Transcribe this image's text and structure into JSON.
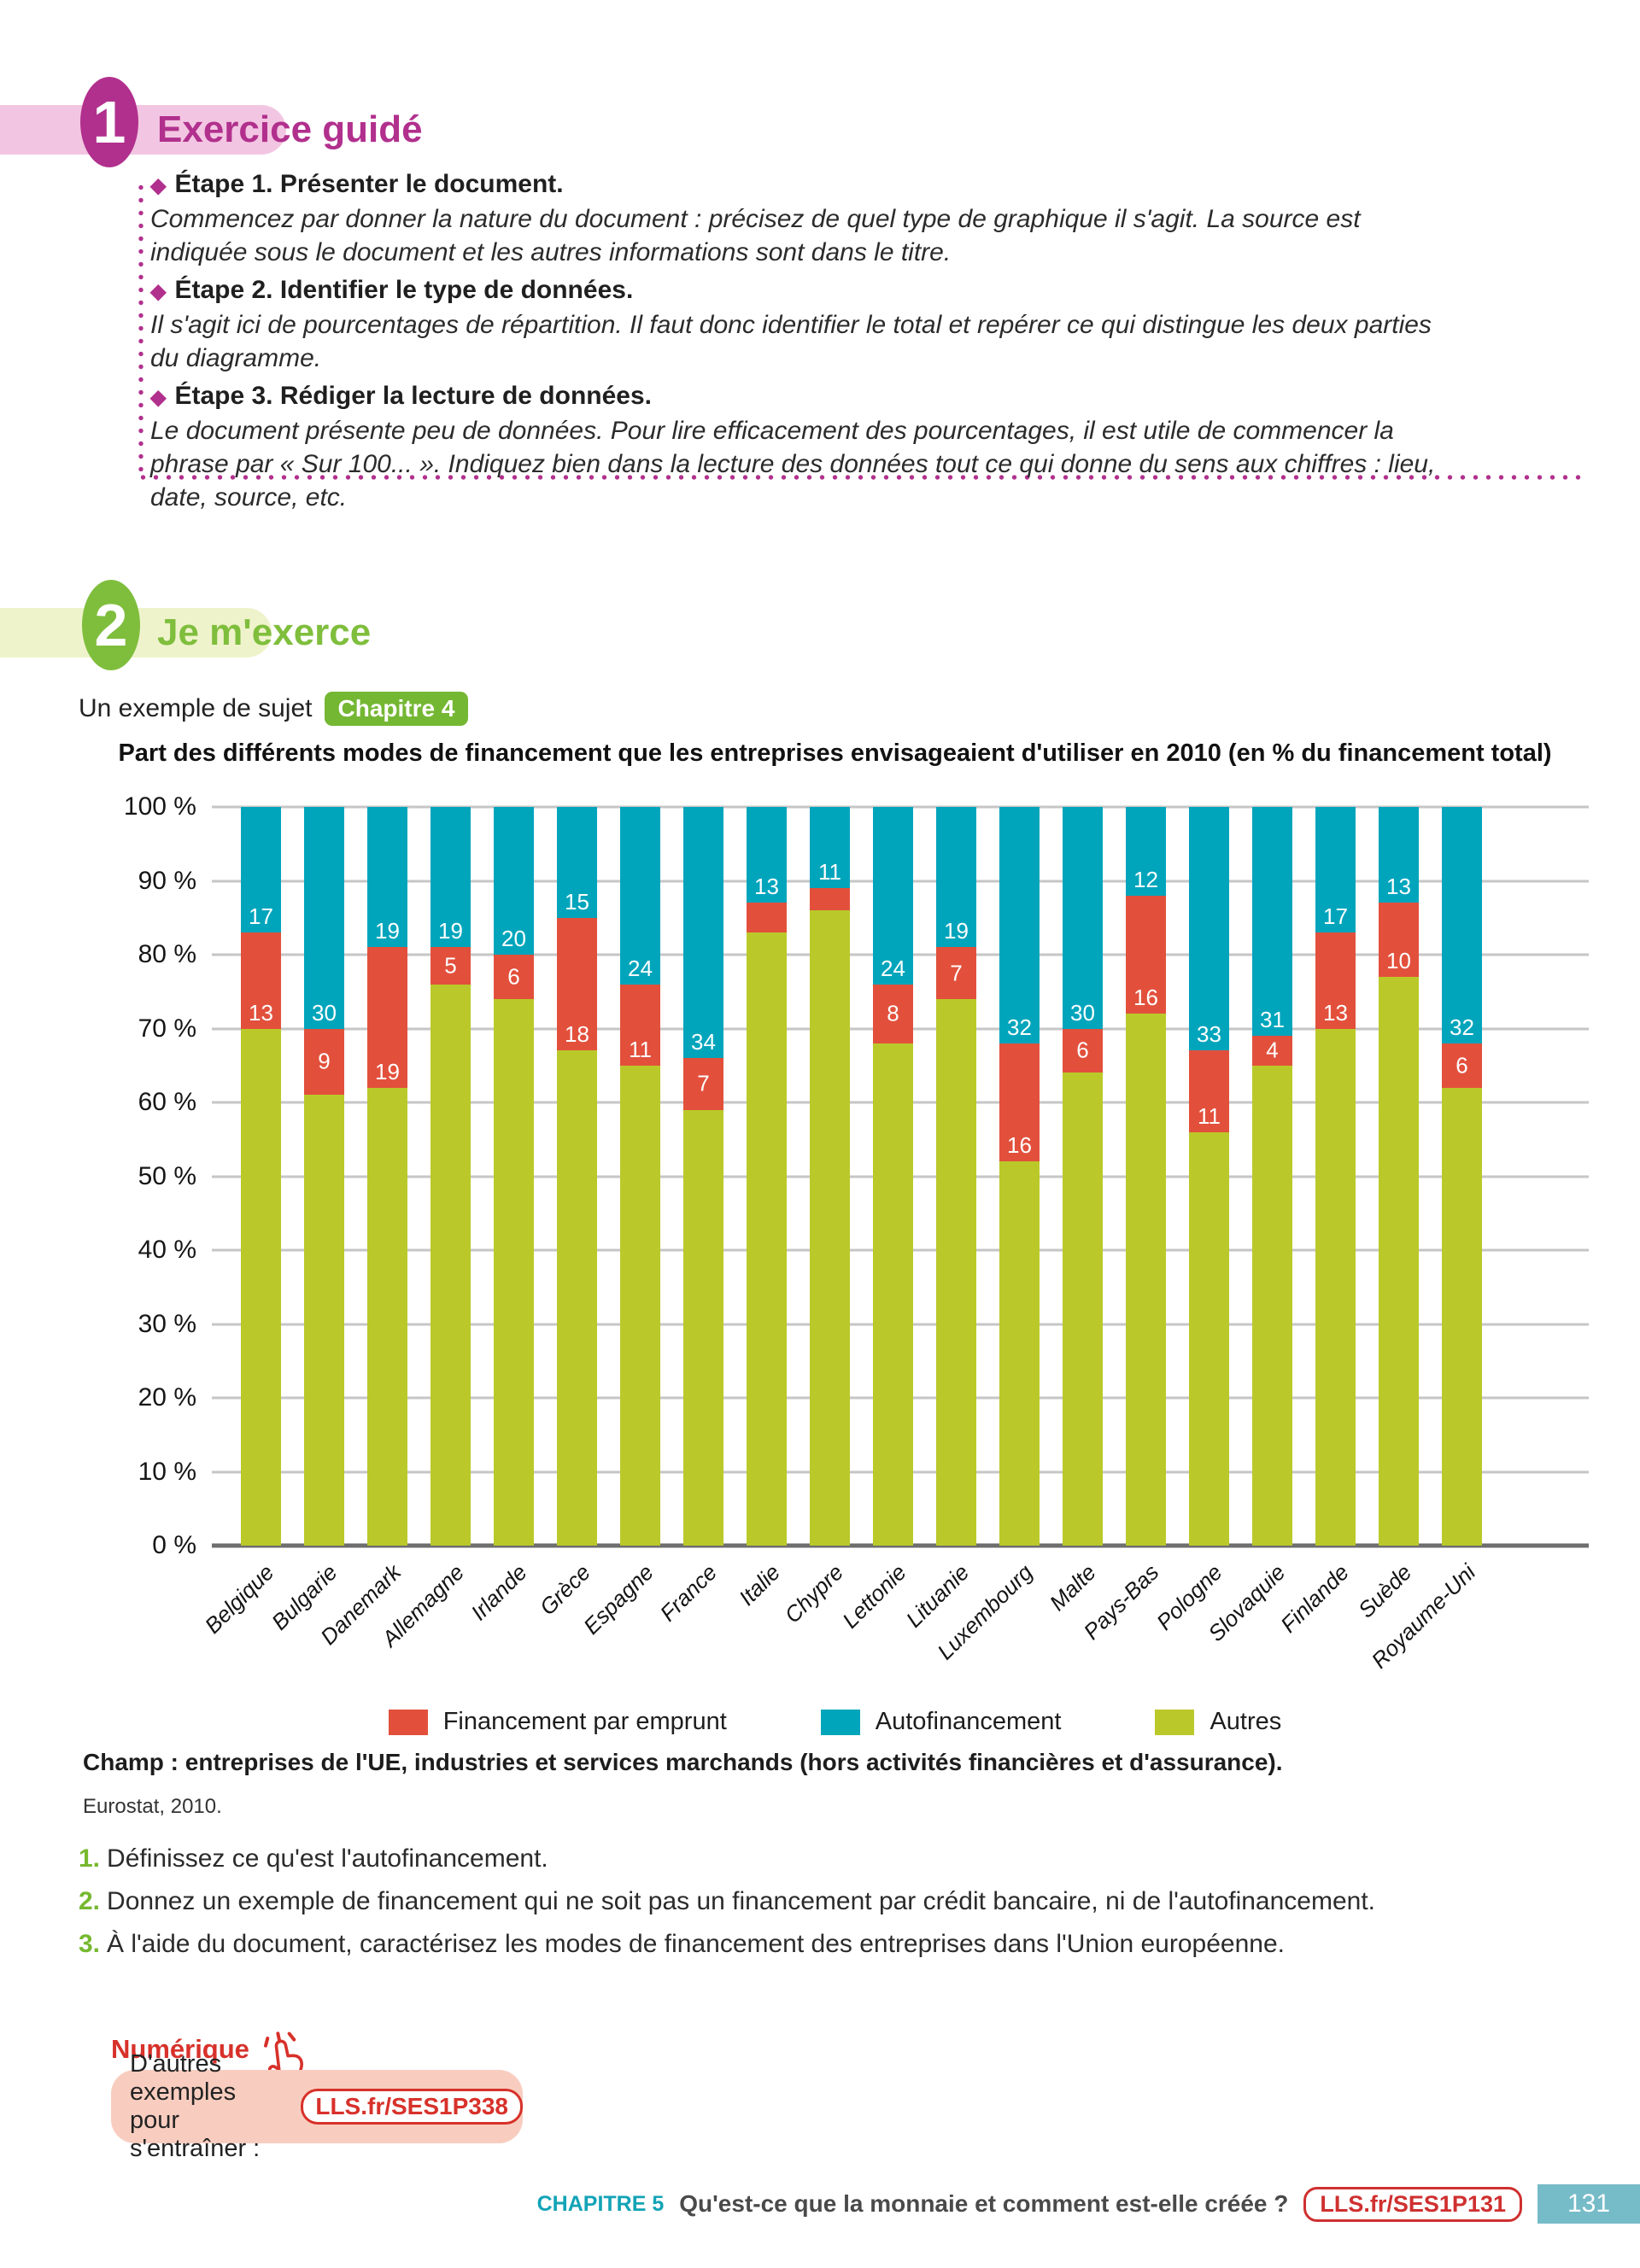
{
  "section1": {
    "number": "1",
    "title": "Exercice guidé",
    "steps": [
      {
        "heading": "Étape 1. Présenter le document.",
        "body": "Commencez par donner la nature du document : précisez de quel type de graphique il s'agit. La source est indiquée sous le document et les autres informations sont dans le titre."
      },
      {
        "heading": "Étape 2. Identifier le type de données.",
        "body": "Il s'agit ici de pourcentages de répartition. Il faut donc identifier le total et repérer ce qui distingue les deux parties du diagramme."
      },
      {
        "heading": "Étape 3. Rédiger la lecture de données.",
        "body": "Le document présente peu de données. Pour lire efficacement des pourcentages, il est utile de commencer la phrase par « Sur 100... ». Indiquez bien dans la lecture des données tout ce qui donne du sens aux chiffres : lieu, date, source, etc."
      }
    ]
  },
  "section2": {
    "number": "2",
    "title": "Je m'exerce",
    "subject_label": "Un exemple de sujet",
    "chapter_badge": "Chapitre 4"
  },
  "chart_data": {
    "type": "bar",
    "stacked": true,
    "title": "Part des différents modes de financement que les entreprises envisageaient d'utiliser en 2010 (en % du financement total)",
    "categories": [
      "Belgique",
      "Bulgarie",
      "Danemark",
      "Allemagne",
      "Irlande",
      "Grèce",
      "Espagne",
      "France",
      "Italie",
      "Chypre",
      "Lettonie",
      "Lituanie",
      "Luxembourg",
      "Malte",
      "Pays-Bas",
      "Pologne",
      "Slovaquie",
      "Finlande",
      "Suède",
      "Royaume-Uni"
    ],
    "series": [
      {
        "name": "Financement par emprunt",
        "color": "#e2503c",
        "values": [
          13,
          9,
          19,
          5,
          6,
          18,
          11,
          7,
          4,
          3,
          8,
          7,
          16,
          6,
          16,
          11,
          4,
          13,
          10,
          6
        ],
        "show_label": [
          true,
          true,
          true,
          true,
          true,
          true,
          true,
          true,
          false,
          false,
          true,
          true,
          true,
          true,
          true,
          true,
          true,
          true,
          true,
          true
        ]
      },
      {
        "name": "Autofinancement",
        "color": "#00a5bc",
        "values": [
          17,
          30,
          19,
          19,
          20,
          15,
          24,
          34,
          13,
          11,
          24,
          19,
          32,
          30,
          12,
          33,
          31,
          17,
          13,
          32
        ],
        "show_label": [
          true,
          true,
          true,
          true,
          true,
          true,
          true,
          true,
          true,
          true,
          true,
          true,
          true,
          true,
          true,
          true,
          true,
          true,
          true,
          true
        ]
      },
      {
        "name": "Autres",
        "color": "#bac929",
        "values": [
          70,
          61,
          62,
          76,
          74,
          67,
          65,
          59,
          83,
          86,
          68,
          74,
          52,
          64,
          72,
          56,
          65,
          70,
          77,
          62
        ],
        "show_label": [
          false,
          false,
          false,
          false,
          false,
          false,
          false,
          false,
          false,
          false,
          false,
          false,
          false,
          false,
          false,
          false,
          false,
          false,
          false,
          false
        ]
      }
    ],
    "ylim": [
      0,
      100
    ],
    "ytick_step": 10,
    "ytick_suffix": " %",
    "grid": true,
    "legend_position": "bottom"
  },
  "caption": {
    "champ": "Champ : entreprises de l'UE, industries et services marchands (hors activités financières et d'assurance).",
    "source": "Eurostat, 2010."
  },
  "questions": [
    {
      "num": "1.",
      "text": "Définissez ce qu'est l'autofinancement."
    },
    {
      "num": "2.",
      "text": "Donnez un exemple de financement qui ne soit pas un financement par crédit bancaire, ni de l'autofinancement."
    },
    {
      "num": "3.",
      "text": "À l'aide du document, caractérisez les modes de financement des entreprises dans l'Union européenne."
    }
  ],
  "numerique": {
    "title": "Numérique",
    "text": "D'autres exemples pour s'entraîner :",
    "link": "LLS.fr/SES1P338"
  },
  "footer": {
    "chapter": "CHAPITRE 5",
    "chapter_title": "Qu'est-ce que la monnaie et comment est-elle créée ?",
    "link": "LLS.fr/SES1P131",
    "page": "131"
  },
  "theme": {
    "magenta": "#b1308d",
    "pink_band": "#f2c6e2",
    "green": "#7fbe3d",
    "pale_band": "#eff3cb",
    "badge_green": "#74b733",
    "red_accent": "#d7312a",
    "salmon_box": "#f8cdbf",
    "footer_teal": "#12a3b6",
    "page_box_teal": "#76bbc8"
  }
}
